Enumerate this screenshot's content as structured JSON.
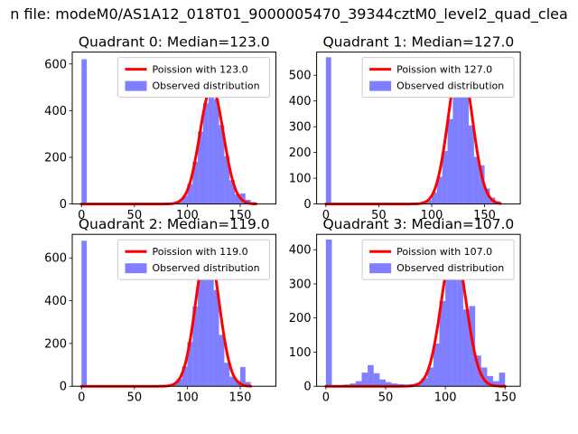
{
  "figure": {
    "title": "n file: modeM0/AS1A12_018T01_9000005470_39344cztM0_level2_quad_clea",
    "background": "#ffffff"
  },
  "colors": {
    "hist_fill": "#0000ff",
    "hist_opacity": 0.5,
    "curve": "#ff0000",
    "axis": "#000000",
    "legend_border": "#cccccc",
    "legend_bg": "#ffffff",
    "text": "#000000"
  },
  "chart_data": [
    {
      "type": "bar",
      "overlay": "poisson-line",
      "title": "Quadrant 0: Median=123.0",
      "legend": [
        "Poission with 123.0",
        "Observed distribution"
      ],
      "bin_start": 0,
      "bin_width": 5,
      "counts": [
        620,
        0,
        0,
        0,
        0,
        0,
        0,
        0,
        0,
        0,
        0,
        0,
        0,
        0,
        0,
        0,
        0,
        4,
        10,
        35,
        86,
        181,
        311,
        432,
        489,
        450,
        338,
        205,
        102,
        41,
        45,
        18,
        8
      ],
      "poisson": {
        "mu": 123.0,
        "amplitude": 500
      },
      "xlim": [
        -8.75,
        183.75
      ],
      "ylim": [
        0,
        651
      ],
      "xticks": [
        0,
        50,
        100,
        150
      ],
      "yticks": [
        0,
        200,
        400,
        600
      ]
    },
    {
      "type": "bar",
      "overlay": "poisson-line",
      "title": "Quadrant 1: Median=127.0",
      "legend": [
        "Poission with 127.0",
        "Observed distribution"
      ],
      "bin_start": 0,
      "bin_width": 5,
      "counts": [
        570,
        0,
        0,
        0,
        0,
        0,
        0,
        0,
        0,
        0,
        0,
        0,
        0,
        0,
        0,
        0,
        0,
        0,
        4,
        15,
        45,
        106,
        206,
        330,
        434,
        470,
        417,
        305,
        183,
        150,
        60,
        25,
        10
      ],
      "poisson": {
        "mu": 127.0,
        "amplitude": 560
      },
      "xlim": [
        -8.75,
        183.75
      ],
      "ylim": [
        0,
        590
      ],
      "xticks": [
        0,
        50,
        100,
        150
      ],
      "yticks": [
        0,
        100,
        200,
        300,
        400,
        500
      ]
    },
    {
      "type": "bar",
      "overlay": "poisson-line",
      "title": "Quadrant 2: Median=119.0",
      "legend": [
        "Poission with 119.0",
        "Observed distribution"
      ],
      "bin_start": 0,
      "bin_width": 5,
      "counts": [
        680,
        0,
        0,
        0,
        0,
        0,
        0,
        0,
        0,
        0,
        0,
        0,
        0,
        0,
        0,
        0,
        0,
        10,
        34,
        93,
        207,
        373,
        544,
        645,
        617,
        450,
        240,
        110,
        45,
        25,
        90,
        20
      ],
      "poisson": {
        "mu": 119.0,
        "amplitude": 660
      },
      "xlim": [
        -8.75,
        183.75
      ],
      "ylim": [
        0,
        710
      ],
      "xticks": [
        0,
        50,
        100,
        150
      ],
      "yticks": [
        0,
        200,
        400,
        600
      ]
    },
    {
      "type": "bar",
      "overlay": "poisson-line",
      "title": "Quadrant 3: Median=107.0",
      "legend": [
        "Poission with 107.0",
        "Observed distribution"
      ],
      "bin_start": 0,
      "bin_width": 5,
      "counts": [
        430,
        0,
        0,
        5,
        8,
        15,
        40,
        62,
        38,
        20,
        12,
        8,
        6,
        5,
        6,
        10,
        24,
        55,
        125,
        250,
        390,
        410,
        330,
        225,
        235,
        90,
        55,
        30,
        15,
        40
      ],
      "poisson": {
        "mu": 107.0,
        "amplitude": 410
      },
      "xlim": [
        -7.75,
        162.75
      ],
      "ylim": [
        0,
        445
      ],
      "xticks": [
        0,
        50,
        100,
        150
      ],
      "yticks": [
        0,
        100,
        200,
        300,
        400
      ]
    }
  ]
}
